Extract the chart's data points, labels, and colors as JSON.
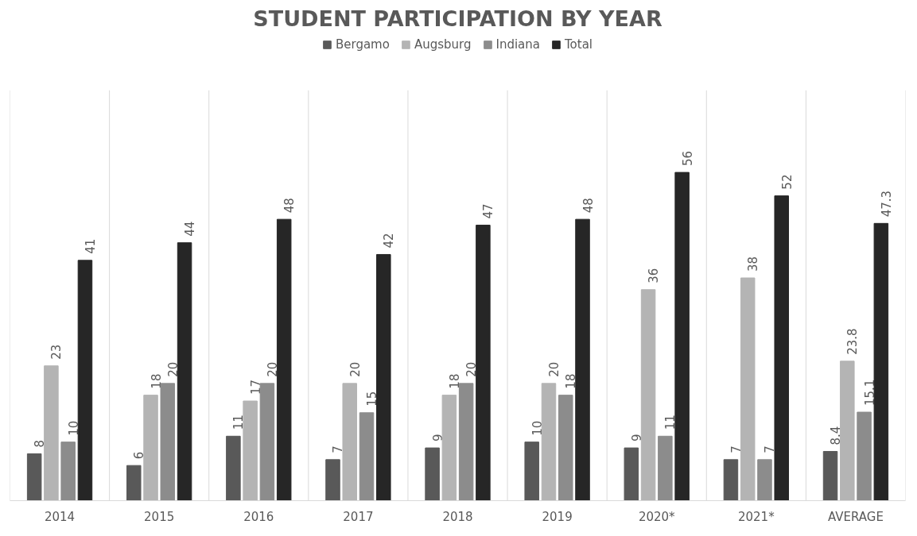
{
  "chart_data": {
    "type": "bar",
    "title": "STUDENT PARTICIPATION BY YEAR",
    "categories": [
      "2014",
      "2015",
      "2016",
      "2017",
      "2018",
      "2019",
      "2020*",
      "2021*",
      "AVERAGE"
    ],
    "series": [
      {
        "name": "Bergamo",
        "color": "#595959",
        "values": [
          8,
          6,
          11,
          7,
          9,
          10,
          9,
          7,
          8.4
        ]
      },
      {
        "name": "Augsburg",
        "color": "#b4b4b4",
        "values": [
          23,
          18,
          17,
          20,
          18,
          20,
          36,
          38,
          23.8
        ]
      },
      {
        "name": "Indiana",
        "color": "#8c8c8c",
        "values": [
          10,
          20,
          20,
          15,
          20,
          18,
          11,
          7,
          15.1
        ]
      },
      {
        "name": "Total",
        "color": "#262626",
        "values": [
          41,
          44,
          48,
          42,
          47,
          48,
          56,
          52,
          47.3
        ]
      }
    ],
    "data_labels": true,
    "legend": "top",
    "grid": "x",
    "tick_labels": "x"
  }
}
